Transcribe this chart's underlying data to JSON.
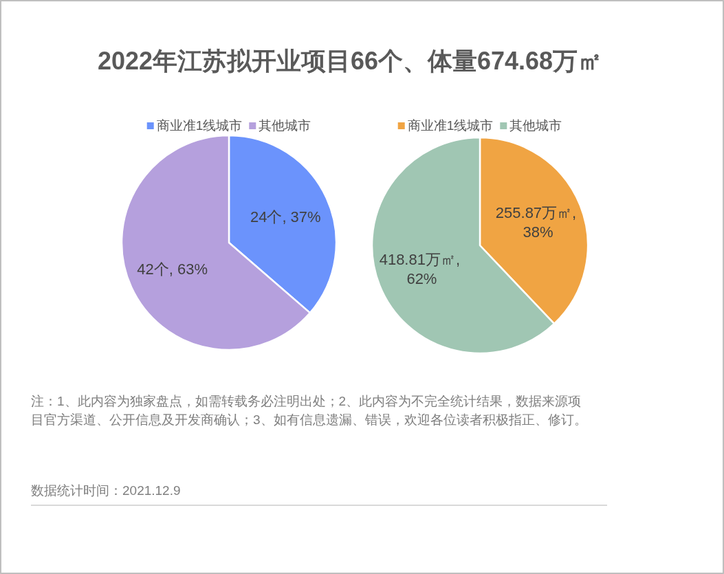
{
  "chart_data": [
    {
      "type": "pie",
      "title": "2022年江苏拟开业项目66个、体量674.68万㎡",
      "categories": [
        "商业准1线城市",
        "其他城市"
      ],
      "values": [
        24,
        42
      ],
      "colors": [
        "#6b93fc",
        "#b5a0dd"
      ],
      "value_labels": [
        "24个, 37%",
        "42个, 63%"
      ],
      "legend": "top"
    },
    {
      "type": "pie",
      "categories": [
        "商业准1线城市",
        "其他城市"
      ],
      "values": [
        255.87,
        418.81
      ],
      "colors": [
        "#f0a443",
        "#a0c6b3"
      ],
      "value_labels": [
        "255.87万㎡, 38%",
        "418.81万㎡, 62%"
      ],
      "legend": "top",
      "annotations": [
        "注：1、此内容为独家盘点，如需转载务必注明出处；2、此内容为不完全统计结果，数据来源项目官方渠道、公开信息及开发商确认；3、如有信息遗漏、错误，欢迎各位读者积极指正、修订。",
        "数据统计时间：2021.12.9"
      ]
    }
  ]
}
